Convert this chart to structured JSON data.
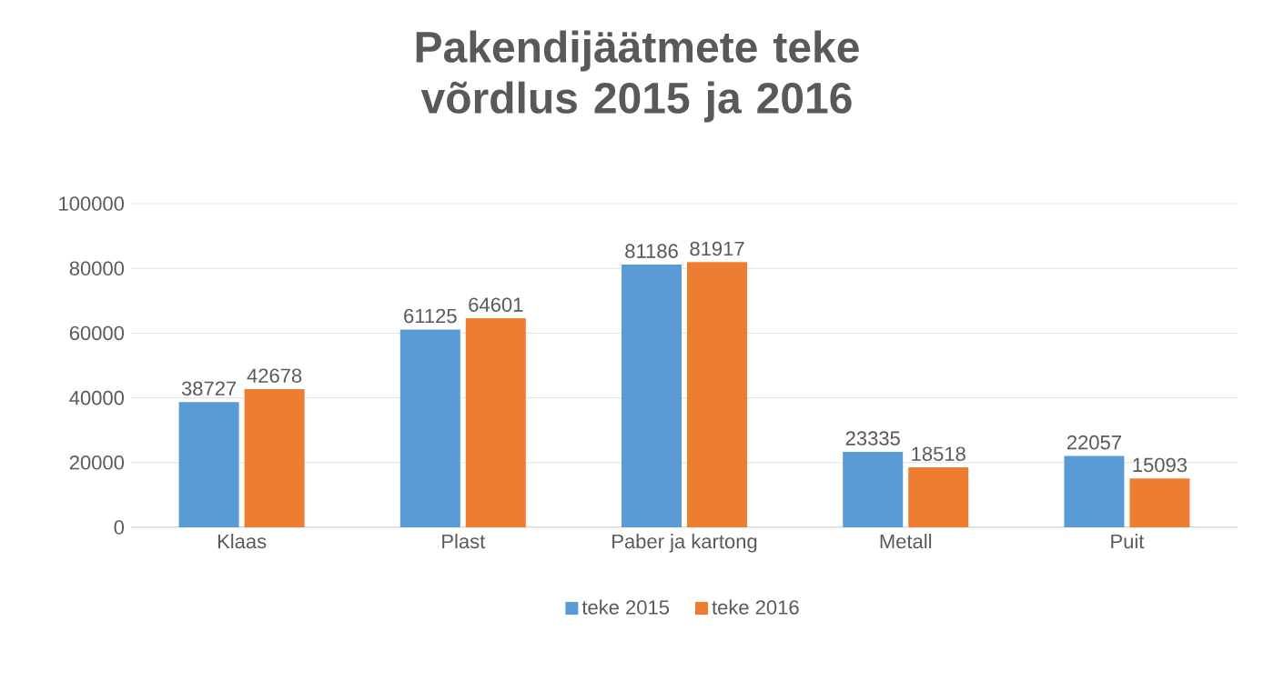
{
  "chart_data": {
    "type": "bar",
    "title": "Pakendijäätmete teke võrdlus 2015 ja 2016",
    "categories": [
      "Klaas",
      "Plast",
      "Paber ja kartong",
      "Metall",
      "Puit"
    ],
    "series": [
      {
        "name": "teke 2015",
        "color": "#5b9bd5",
        "values": [
          38727,
          61125,
          81186,
          23335,
          22057
        ]
      },
      {
        "name": "teke 2016",
        "color": "#ed7d31",
        "values": [
          42678,
          64601,
          81917,
          18518,
          15093
        ]
      }
    ],
    "ylim": [
      0,
      100000
    ],
    "yticks": [
      0,
      20000,
      40000,
      60000,
      80000,
      100000
    ],
    "grid": "y",
    "legend": "bottom",
    "data_labels": true
  }
}
